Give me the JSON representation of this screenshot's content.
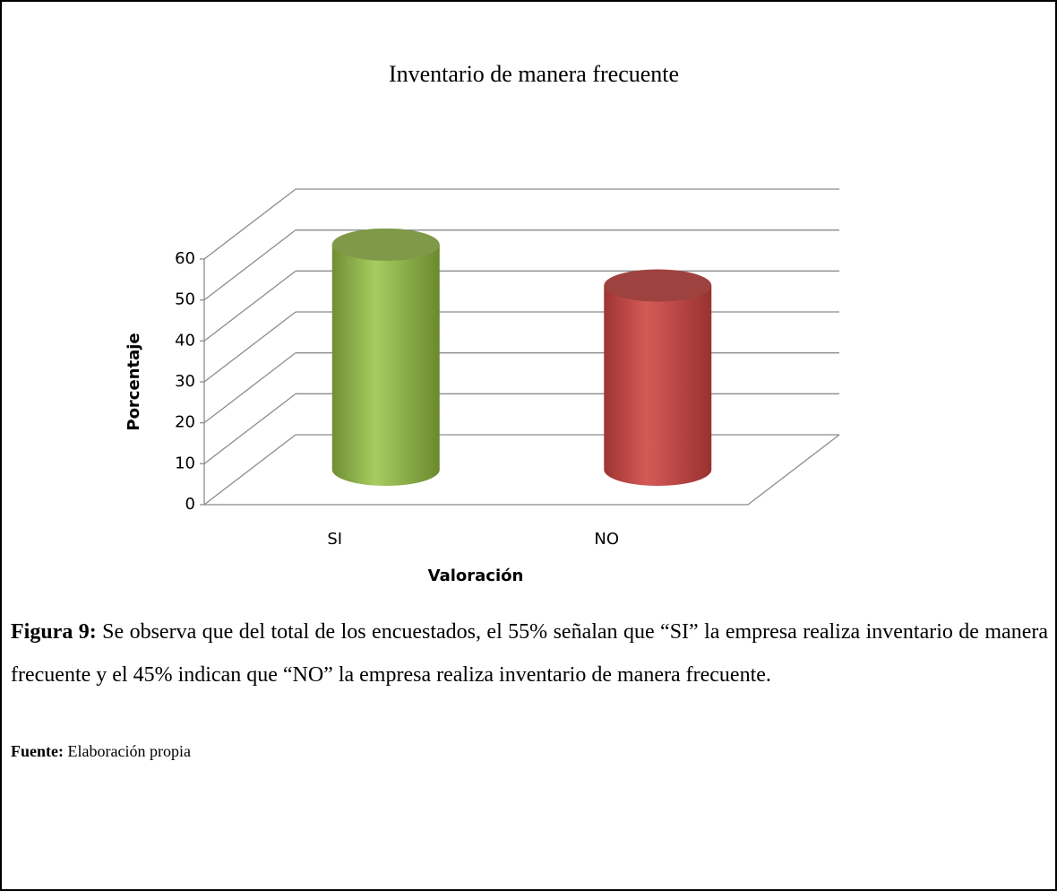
{
  "chart_data": {
    "type": "bar3d",
    "title": "Inventario de manera frecuente",
    "categories": [
      "SI",
      "NO"
    ],
    "values": [
      55,
      45
    ],
    "colors": [
      "#9bbb59",
      "#c0504d"
    ],
    "xlabel": "Valoración",
    "ylabel": "Porcentaje",
    "ylim": [
      0,
      60
    ],
    "yticks": [
      0,
      10,
      20,
      30,
      40,
      50,
      60
    ],
    "grid": true
  },
  "caption": {
    "label": "Figura 9:",
    "text": "Se observa que del total de los encuestados, el 55% señalan que “SI” la empresa realiza inventario de manera frecuente y el 45% indican que “NO” la empresa realiza inventario de manera frecuente."
  },
  "source": {
    "label": "Fuente:",
    "text": "Elaboración propia"
  }
}
